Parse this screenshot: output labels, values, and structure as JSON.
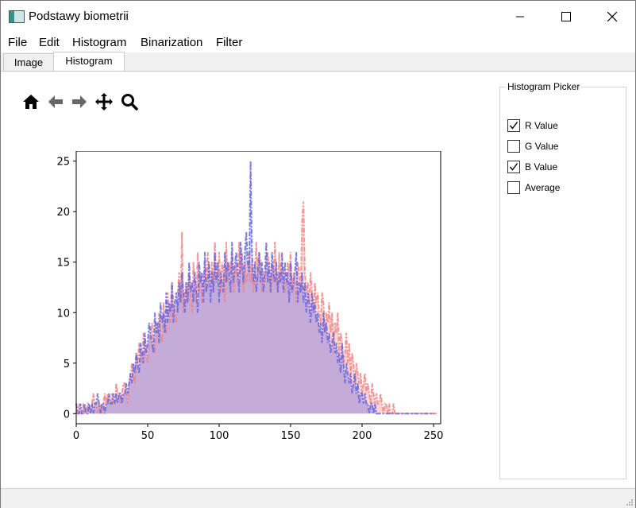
{
  "window": {
    "title": "Podstawy biometrii"
  },
  "titlebar_buttons": [
    {
      "name": "minimize-button",
      "icon": "minimize-icon"
    },
    {
      "name": "maximize-button",
      "icon": "maximize-icon"
    },
    {
      "name": "close-button",
      "icon": "close-icon"
    }
  ],
  "menu": [
    "File",
    "Edit",
    "Histogram",
    "Binarization",
    "Filter"
  ],
  "tabs": [
    {
      "label": "Image",
      "active": false
    },
    {
      "label": "Histogram",
      "active": true
    }
  ],
  "toolbar": [
    "home-icon",
    "back-arrow-icon",
    "forward-arrow-icon",
    "pan-move-icon",
    "zoom-magnifier-icon"
  ],
  "picker": {
    "title": "Histogram Picker",
    "options": [
      {
        "label": "R Value",
        "checked": true
      },
      {
        "label": "G Value",
        "checked": false
      },
      {
        "label": "B Value",
        "checked": true
      },
      {
        "label": "Average",
        "checked": false
      }
    ]
  },
  "chart_data": {
    "type": "line",
    "title": "",
    "xlabel": "",
    "ylabel": "",
    "xlim": [
      0,
      255
    ],
    "ylim": [
      -1,
      26
    ],
    "xticks": [
      0,
      50,
      100,
      150,
      200,
      250
    ],
    "yticks": [
      0,
      5,
      10,
      15,
      20,
      25
    ],
    "grid": false,
    "legend": "none",
    "x_range": [
      0,
      255
    ],
    "series": [
      {
        "color": "#f08080",
        "values": [
          1,
          0,
          1,
          0,
          0,
          1,
          0,
          0,
          1,
          1,
          0,
          1,
          2,
          1,
          1,
          0,
          1,
          1,
          0,
          1,
          2,
          1,
          2,
          1,
          1,
          2,
          1,
          1,
          3,
          2,
          2,
          1,
          2,
          3,
          3,
          2,
          1,
          3,
          4,
          5,
          4,
          3,
          6,
          5,
          7,
          6,
          5,
          8,
          7,
          6,
          5,
          7,
          8,
          9,
          7,
          6,
          9,
          8,
          10,
          8,
          7,
          11,
          9,
          8,
          12,
          10,
          9,
          13,
          11,
          10,
          9,
          12,
          14,
          11,
          18,
          10,
          12,
          13,
          11,
          14,
          12,
          10,
          15,
          13,
          11,
          16,
          12,
          14,
          11,
          13,
          15,
          12,
          16,
          14,
          13,
          15,
          12,
          17,
          14,
          13,
          16,
          12,
          15,
          14,
          11,
          17,
          13,
          15,
          14,
          16,
          12,
          14,
          15,
          13,
          17,
          14,
          16,
          12,
          15,
          13,
          14,
          16,
          13,
          15,
          12,
          14,
          17,
          13,
          16,
          15,
          12,
          14,
          13,
          15,
          16,
          14,
          12,
          15,
          13,
          17,
          14,
          12,
          16,
          13,
          15,
          14,
          12,
          13,
          15,
          14,
          16,
          12,
          14,
          13,
          11,
          15,
          14,
          12,
          19,
          21,
          14,
          12,
          13,
          11,
          14,
          12,
          10,
          13,
          11,
          12,
          10,
          9,
          12,
          11,
          8,
          10,
          9,
          11,
          8,
          10,
          7,
          9,
          8,
          10,
          6,
          8,
          7,
          5,
          6,
          8,
          5,
          7,
          4,
          6,
          5,
          3,
          5,
          4,
          3,
          4,
          2,
          3,
          4,
          2,
          3,
          2,
          1,
          3,
          2,
          1,
          2,
          1,
          1,
          2,
          1,
          0,
          1,
          1,
          0,
          1,
          0,
          0,
          1,
          0,
          0,
          0,
          0,
          0,
          0,
          0,
          0,
          0,
          0,
          0,
          0,
          0,
          0,
          0,
          0,
          0,
          0,
          0,
          0,
          0,
          0,
          0,
          0,
          0,
          0,
          0,
          0,
          0,
          0,
          0
        ]
      },
      {
        "color": "#6060e0",
        "values": [
          1,
          0,
          0,
          1,
          0,
          0,
          1,
          0,
          0,
          1,
          0,
          1,
          0,
          1,
          1,
          2,
          1,
          0,
          1,
          1,
          0,
          1,
          1,
          2,
          1,
          1,
          2,
          1,
          2,
          1,
          2,
          2,
          1,
          2,
          2,
          3,
          2,
          3,
          4,
          3,
          5,
          4,
          6,
          5,
          4,
          7,
          6,
          5,
          8,
          6,
          7,
          9,
          8,
          7,
          6,
          10,
          8,
          9,
          7,
          11,
          9,
          10,
          8,
          12,
          9,
          11,
          10,
          13,
          9,
          11,
          12,
          10,
          13,
          11,
          14,
          12,
          10,
          13,
          11,
          15,
          12,
          13,
          11,
          14,
          12,
          10,
          15,
          13,
          14,
          11,
          16,
          12,
          13,
          15,
          11,
          14,
          12,
          16,
          13,
          15,
          11,
          14,
          13,
          12,
          16,
          13,
          15,
          14,
          12,
          17,
          13,
          15,
          16,
          14,
          12,
          17,
          15,
          13,
          16,
          18,
          15,
          14,
          25,
          16,
          13,
          15,
          12,
          14,
          16,
          13,
          15,
          12,
          14,
          17,
          13,
          15,
          12,
          16,
          14,
          13,
          15,
          12,
          14,
          13,
          16,
          12,
          15,
          13,
          14,
          11,
          15,
          12,
          13,
          14,
          16,
          11,
          13,
          12,
          14,
          11,
          13,
          10,
          12,
          11,
          9,
          12,
          10,
          11,
          9,
          10,
          8,
          9,
          7,
          10,
          8,
          9,
          7,
          8,
          6,
          7,
          8,
          6,
          7,
          5,
          6,
          4,
          7,
          5,
          3,
          5,
          4,
          3,
          4,
          2,
          3,
          4,
          2,
          3,
          1,
          2,
          2,
          1,
          2,
          1,
          1,
          0,
          1,
          1,
          0,
          1,
          0,
          0,
          0,
          0,
          0,
          0,
          0,
          0,
          0,
          0,
          0,
          0,
          0,
          0,
          0,
          0,
          0,
          0,
          0,
          0,
          0,
          0,
          0,
          0,
          0,
          0,
          0,
          0,
          0,
          0,
          0,
          0,
          0,
          0,
          0,
          0,
          0,
          0,
          0,
          0,
          0,
          0
        ]
      }
    ]
  }
}
